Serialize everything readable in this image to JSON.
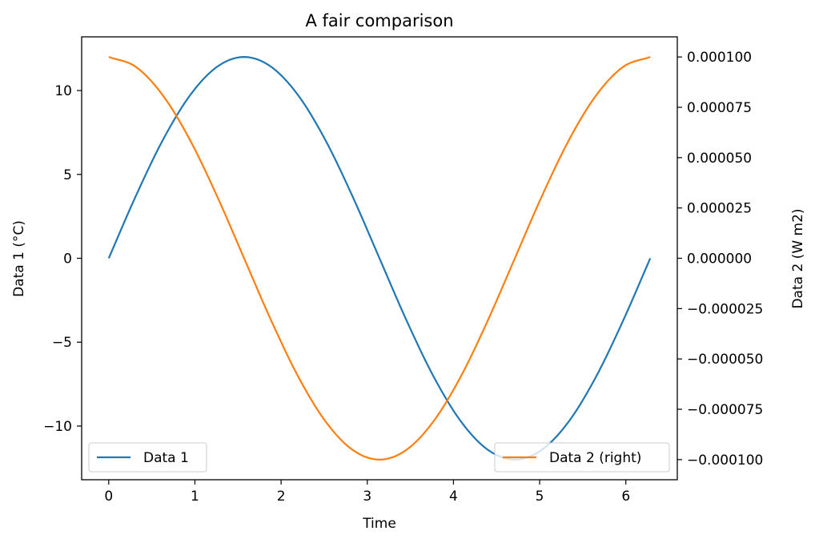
{
  "chart_data": {
    "type": "line",
    "title": "A fair comparison",
    "xlabel": "Time",
    "ylabel": "Data 1 (°C)",
    "y2label": "Data 2 (W m2)",
    "xlim": [
      -0.314,
      6.597
    ],
    "ylim": [
      -13.2,
      13.2
    ],
    "y2lim": [
      -0.00011,
      0.00011
    ],
    "x_ticks": [
      0,
      1,
      2,
      3,
      4,
      5,
      6
    ],
    "x_tick_labels": [
      "0",
      "1",
      "2",
      "3",
      "4",
      "5",
      "6"
    ],
    "y_ticks": [
      -10,
      -5,
      0,
      5,
      10
    ],
    "y_tick_labels": [
      "−10",
      "−5",
      "0",
      "5",
      "10"
    ],
    "y2_ticks": [
      -0.0001,
      -7.5e-05,
      -5e-05,
      -2.5e-05,
      0,
      2.5e-05,
      5e-05,
      7.5e-05,
      0.0001
    ],
    "y2_tick_labels": [
      "−0.000100",
      "−0.000075",
      "−0.000050",
      "−0.000025",
      "0.000000",
      "0.000025",
      "0.000050",
      "0.000075",
      "0.000100"
    ],
    "grid": false,
    "x": [
      0.0,
      0.3142,
      0.6283,
      0.9425,
      1.2566,
      1.5708,
      1.885,
      2.1991,
      2.5133,
      2.8274,
      3.1416,
      3.4558,
      3.7699,
      4.0841,
      4.3982,
      4.7124,
      5.0265,
      5.3407,
      5.6549,
      5.969,
      6.2832
    ],
    "series": [
      {
        "name": "Data 1",
        "axis": "left",
        "color": "#1f77b4",
        "legend_position": "lower-left",
        "values": [
          0.0,
          3.708,
          7.053,
          9.708,
          11.413,
          12.0,
          11.413,
          9.708,
          7.053,
          3.708,
          0.0,
          -3.708,
          -7.053,
          -9.708,
          -11.413,
          -12.0,
          -11.413,
          -9.708,
          -7.053,
          -3.708,
          0.0
        ]
      },
      {
        "name": "Data 2 (right)",
        "axis": "right",
        "color": "#ff7f0e",
        "legend_position": "lower-right",
        "values": [
          0.0001,
          9.51e-05,
          8.09e-05,
          5.88e-05,
          3.09e-05,
          0.0,
          -3.09e-05,
          -5.88e-05,
          -8.09e-05,
          -9.51e-05,
          -0.0001,
          -9.51e-05,
          -8.09e-05,
          -5.88e-05,
          -3.09e-05,
          0.0,
          3.09e-05,
          5.88e-05,
          8.09e-05,
          9.51e-05,
          0.0001
        ]
      }
    ]
  }
}
